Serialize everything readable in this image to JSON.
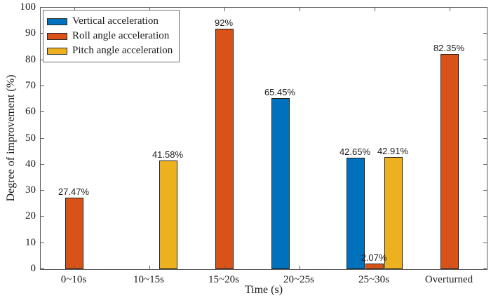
{
  "figure": {
    "background": "#ffffff",
    "axis_color": "#5a5a5a"
  },
  "chart_data": {
    "type": "bar",
    "title": "",
    "xlabel": "Time (s)",
    "ylabel": "Degree of improvement (%)",
    "ylim": [
      0,
      100
    ],
    "ytick_step": 10,
    "ytick_labels": [
      "0",
      "10",
      "20",
      "30",
      "40",
      "50",
      "60",
      "70",
      "80",
      "90",
      "100"
    ],
    "grid": false,
    "box": true,
    "tick_direction": "in",
    "legend_position": "top-left-inside",
    "categories": [
      "0~10s",
      "10~15s",
      "15~20s",
      "20~25s",
      "25~30s",
      "Overturned"
    ],
    "series": [
      {
        "name": "Vertical acceleration",
        "color": "#0072BD",
        "values": [
          0,
          0,
          0,
          65.45,
          42.65,
          0
        ],
        "labels": [
          "",
          "",
          "",
          "65.45%",
          "42.65%",
          ""
        ]
      },
      {
        "name": "Roll angle acceleration",
        "color": "#D95319",
        "values": [
          27.47,
          0,
          92,
          0,
          2.07,
          82.35
        ],
        "labels": [
          "27.47%",
          "",
          "92%",
          "",
          "2.07%",
          "82.35%"
        ]
      },
      {
        "name": "Pitch angle acceleration",
        "color": "#EDB120",
        "values": [
          0,
          41.58,
          0,
          0,
          42.91,
          0
        ],
        "labels": [
          "",
          "41.58%",
          "",
          "",
          "42.91%",
          ""
        ]
      }
    ]
  }
}
